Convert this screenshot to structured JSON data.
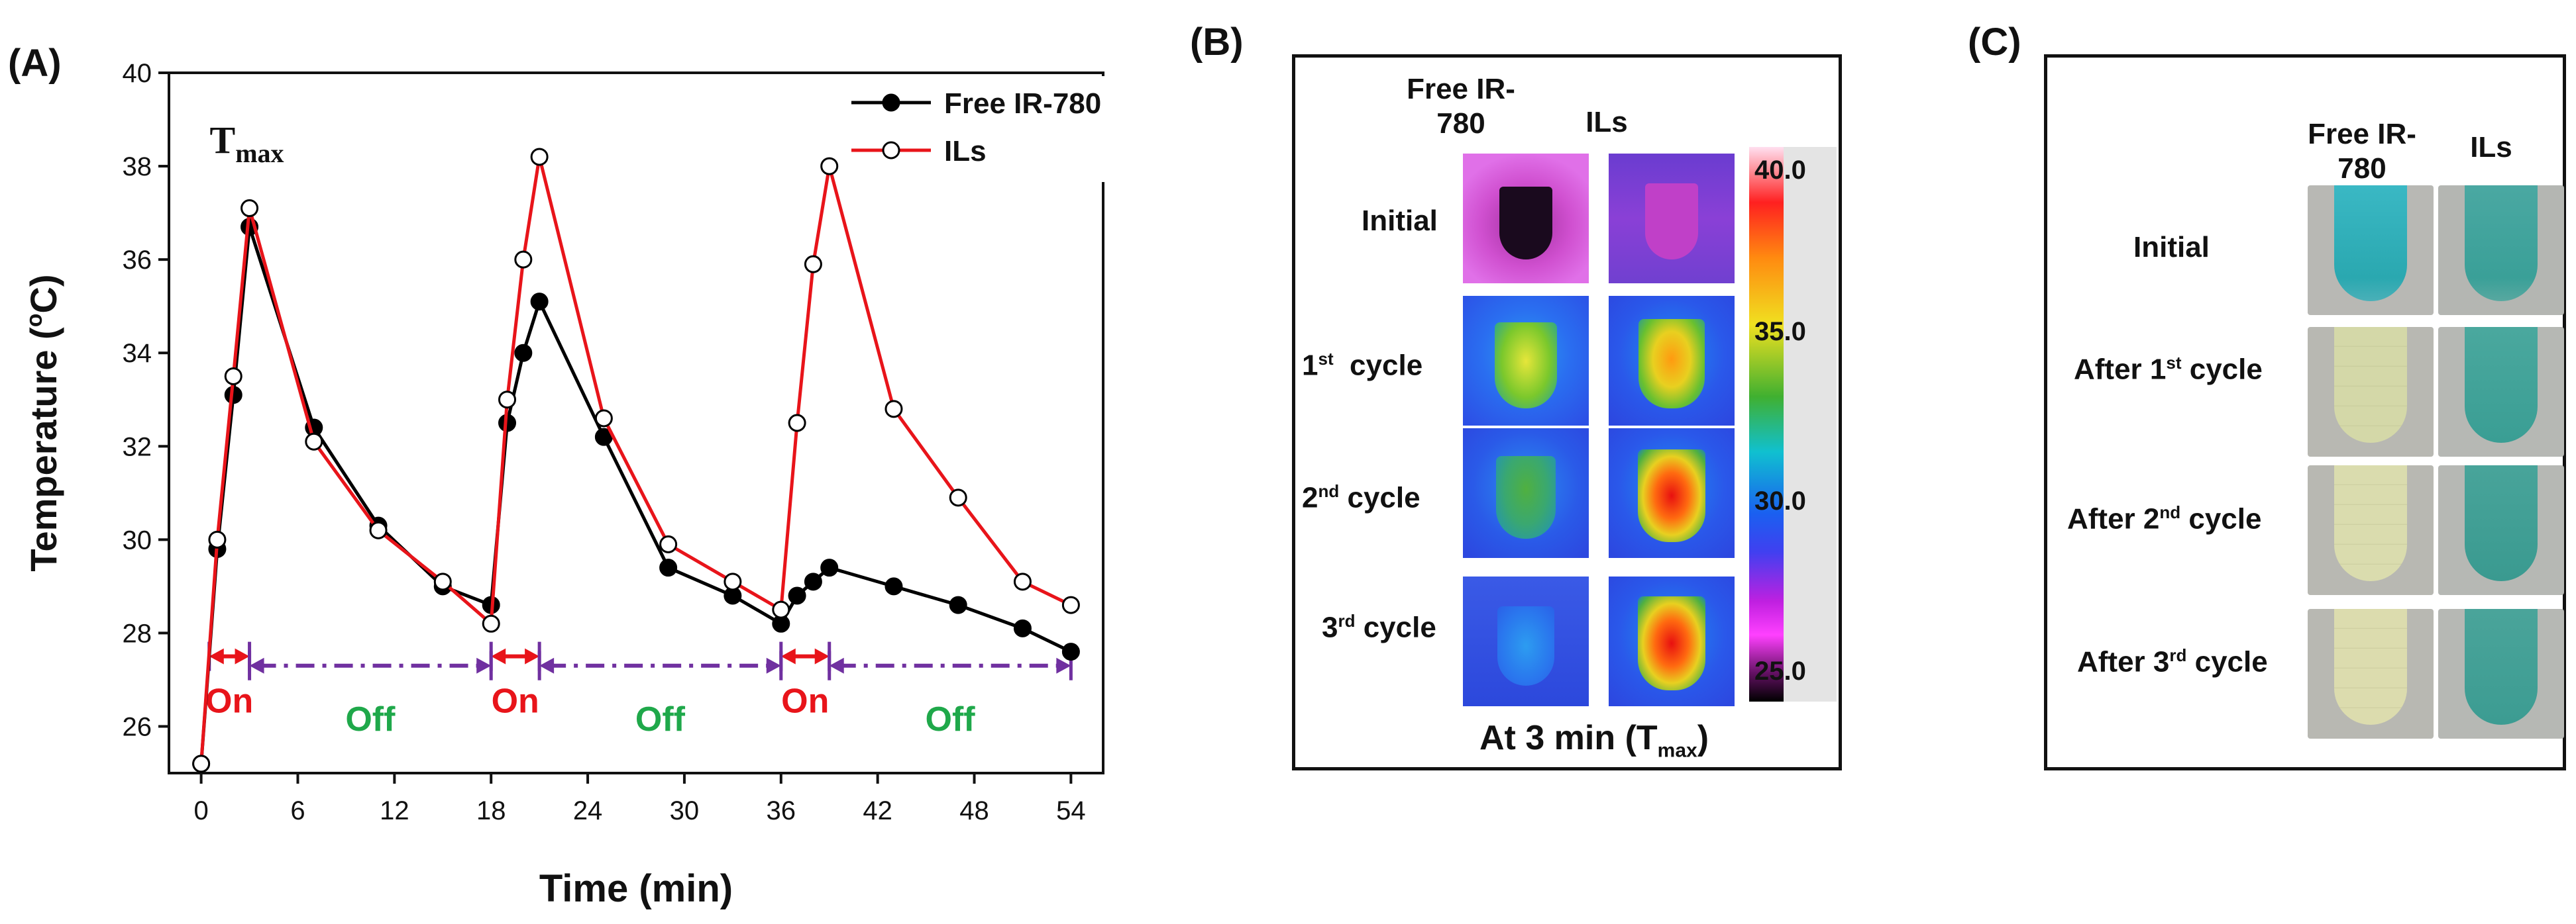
{
  "panels": {
    "a": "(A)",
    "b": "(B)",
    "c": "(C)"
  },
  "chart_data": {
    "type": "line",
    "xlabel": "Time (min)",
    "ylabel_prefix": "Temperature (",
    "ylabel_sup": "o",
    "ylabel_suffix": "C)",
    "xlim": [
      -2,
      56
    ],
    "ylim": [
      25,
      40
    ],
    "xticks": [
      0,
      6,
      12,
      18,
      24,
      30,
      36,
      42,
      48,
      54
    ],
    "yticks": [
      26,
      28,
      30,
      32,
      34,
      36,
      38,
      40
    ],
    "legend_position": "top-right",
    "annotation_tmax": {
      "main": "T",
      "sub": "max",
      "x": 3,
      "y": 38.5
    },
    "series": [
      {
        "name": "Free IR-780",
        "color": "#000000",
        "marker": "filled-circle",
        "x": [
          0,
          1,
          2,
          3,
          7,
          11,
          15,
          18,
          19,
          20,
          21,
          25,
          29,
          33,
          36,
          37,
          38,
          39,
          43,
          47,
          51,
          54
        ],
        "y": [
          25.2,
          29.8,
          33.1,
          36.7,
          32.4,
          30.3,
          29.0,
          28.6,
          32.5,
          34.0,
          35.1,
          32.2,
          29.4,
          28.8,
          28.2,
          28.8,
          29.1,
          29.4,
          29.0,
          28.6,
          28.1,
          27.6
        ]
      },
      {
        "name": "ILs",
        "color": "#e8141a",
        "marker": "open-circle",
        "x": [
          0,
          1,
          2,
          3,
          7,
          11,
          15,
          18,
          19,
          20,
          21,
          25,
          29,
          33,
          36,
          37,
          38,
          39,
          43,
          47,
          51,
          54
        ],
        "y": [
          25.2,
          30.0,
          33.5,
          37.1,
          32.1,
          30.2,
          29.1,
          28.2,
          33.0,
          36.0,
          38.2,
          32.6,
          29.9,
          29.1,
          28.5,
          32.5,
          35.9,
          38.0,
          32.8,
          30.9,
          29.1,
          28.6
        ]
      }
    ],
    "on_off": [
      {
        "type": "On",
        "start": 0.5,
        "end": 3,
        "y": 27.5,
        "color": "#e8141a"
      },
      {
        "type": "Off",
        "start": 3,
        "end": 18,
        "y": 27.3,
        "color": "#7030a0"
      },
      {
        "type": "On",
        "start": 18,
        "end": 21,
        "y": 27.5,
        "color": "#e8141a"
      },
      {
        "type": "Off",
        "start": 21,
        "end": 36,
        "y": 27.3,
        "color": "#7030a0"
      },
      {
        "type": "On",
        "start": 36,
        "end": 39,
        "y": 27.5,
        "color": "#e8141a"
      },
      {
        "type": "Off",
        "start": 39,
        "end": 54,
        "y": 27.3,
        "color": "#7030a0"
      }
    ],
    "on_color": "#e8141a",
    "off_color": "#1fa84a"
  },
  "panel_b": {
    "col1": "Free IR-780",
    "col2": "ILs",
    "rows": [
      {
        "main": "Initial",
        "sup": "",
        "rest": ""
      },
      {
        "main": "1",
        "sup": "st",
        "rest": "  cycle"
      },
      {
        "main": "2",
        "sup": "nd",
        "rest": " cycle"
      },
      {
        "main": "3",
        "sup": "rd",
        "rest": " cycle"
      }
    ],
    "colorbar_labels": [
      "40.0",
      "35.0",
      "30.0",
      "25.0"
    ],
    "caption_main": "At 3 min (T",
    "caption_sub": "max",
    "caption_end": ")"
  },
  "panel_c": {
    "col1": "Free IR-780",
    "col2": "ILs",
    "rows": [
      {
        "main": "Initial",
        "sup": "",
        "rest": ""
      },
      {
        "main": "After 1",
        "sup": "st",
        "rest": " cycle"
      },
      {
        "main": "After 2",
        "sup": "nd",
        "rest": " cycle"
      },
      {
        "main": "After 3",
        "sup": "rd",
        "rest": " cycle"
      }
    ]
  }
}
